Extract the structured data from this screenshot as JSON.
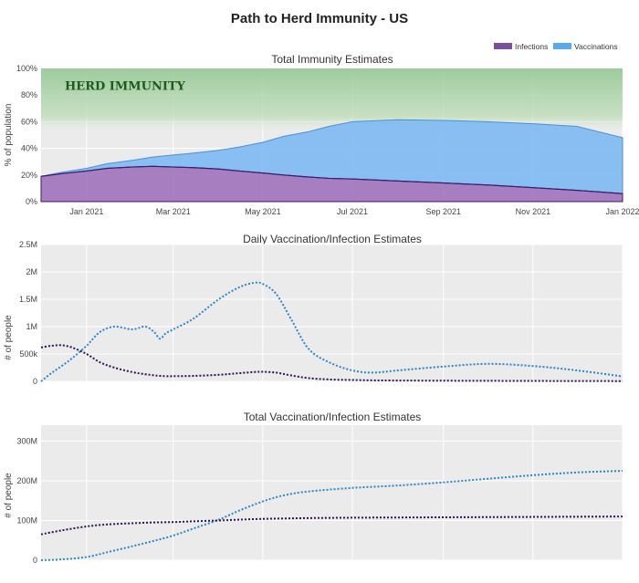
{
  "figure": {
    "title": "Path to Herd Immunity - US",
    "legend": {
      "position": "top-right",
      "items": [
        {
          "name": "Infections",
          "color": "#7a4f9e"
        },
        {
          "name": "Vaccinations",
          "color": "#5aa9ee"
        }
      ]
    },
    "x_ticks": [
      "Jan 2021",
      "Mar 2021",
      "May 2021",
      "Jul 2021",
      "Sep 2021",
      "Nov 2021",
      "Jan 2022"
    ]
  },
  "chart_data": [
    {
      "type": "area",
      "title": "Total Immunity Estimates",
      "ylabel": "% of population",
      "ylim": [
        0,
        100
      ],
      "yticks": [
        "0%",
        "20%",
        "40%",
        "60%",
        "80%",
        "100%"
      ],
      "annotation": "HERD IMMUNITY",
      "herd_band": [
        60,
        100
      ],
      "x": [
        "2020-12-01",
        "2020-12-15",
        "2021-01-01",
        "2021-01-15",
        "2021-02-01",
        "2021-02-15",
        "2021-03-01",
        "2021-03-15",
        "2021-04-01",
        "2021-04-15",
        "2021-05-01",
        "2021-05-15",
        "2021-06-01",
        "2021-06-15",
        "2021-07-01",
        "2021-08-01",
        "2021-09-01",
        "2021-10-01",
        "2021-11-01",
        "2021-12-01",
        "2022-01-01"
      ],
      "series": [
        {
          "name": "Infections",
          "color": "#7a4f9e",
          "values": [
            19,
            21,
            23,
            25,
            26,
            26.5,
            26,
            25.5,
            24.5,
            23,
            21.5,
            20,
            18.5,
            17.5,
            17,
            15.5,
            14,
            12.5,
            10.5,
            8.5,
            6
          ]
        },
        {
          "name": "Vaccinations",
          "color": "#5aa9ee",
          "values": [
            0,
            1,
            2,
            3.5,
            5,
            7,
            9,
            11,
            14,
            18,
            23,
            29,
            34,
            39,
            43,
            46,
            47,
            47.5,
            48,
            48,
            42
          ]
        }
      ]
    },
    {
      "type": "line",
      "title": "Daily Vaccination/Infection Estimates",
      "ylabel": "# of people",
      "ylim": [
        0,
        2500000
      ],
      "yticks": [
        "0",
        "500k",
        "1M",
        "1.5M",
        "2M",
        "2.5M"
      ],
      "x": [
        "2020-12-01",
        "2020-12-08",
        "2020-12-15",
        "2020-12-22",
        "2021-01-01",
        "2021-01-10",
        "2021-01-20",
        "2021-02-01",
        "2021-02-10",
        "2021-02-16",
        "2021-02-20",
        "2021-02-24",
        "2021-03-01",
        "2021-03-15",
        "2021-04-01",
        "2021-04-15",
        "2021-04-25",
        "2021-05-01",
        "2021-05-10",
        "2021-05-20",
        "2021-06-01",
        "2021-06-15",
        "2021-07-01",
        "2021-07-15",
        "2021-08-01",
        "2021-09-01",
        "2021-10-01",
        "2021-11-01",
        "2021-12-01",
        "2022-01-01"
      ],
      "series": [
        {
          "name": "Vaccinations",
          "color": "#2b86c9",
          "values": [
            0,
            150000,
            280000,
            420000,
            650000,
            900000,
            1000000,
            950000,
            1000000,
            900000,
            780000,
            880000,
            950000,
            1150000,
            1500000,
            1720000,
            1800000,
            1780000,
            1600000,
            1150000,
            600000,
            350000,
            200000,
            160000,
            200000,
            270000,
            320000,
            280000,
            200000,
            90000
          ]
        },
        {
          "name": "Infections",
          "color": "#2a1352",
          "values": [
            620000,
            650000,
            660000,
            620000,
            500000,
            350000,
            250000,
            170000,
            130000,
            110000,
            100000,
            95000,
            95000,
            100000,
            120000,
            150000,
            170000,
            175000,
            160000,
            110000,
            60000,
            35000,
            25000,
            18000,
            15000,
            12000,
            10000,
            8000,
            6000,
            5000
          ]
        }
      ]
    },
    {
      "type": "line",
      "title": "Total Vaccination/Infection Estimates",
      "ylabel": "# of people",
      "ylim": [
        0,
        340000000
      ],
      "yticks": [
        "0",
        "100M",
        "200M",
        "300M"
      ],
      "x": [
        "2020-12-01",
        "2020-12-15",
        "2021-01-01",
        "2021-01-15",
        "2021-02-01",
        "2021-02-15",
        "2021-03-01",
        "2021-03-15",
        "2021-04-01",
        "2021-04-15",
        "2021-05-01",
        "2021-05-15",
        "2021-06-01",
        "2021-07-01",
        "2021-08-01",
        "2021-09-01",
        "2021-10-01",
        "2021-11-01",
        "2021-12-01",
        "2022-01-01"
      ],
      "series": [
        {
          "name": "Vaccinations",
          "color": "#2b86c9",
          "values": [
            0,
            2000000,
            8000000,
            20000000,
            35000000,
            48000000,
            62000000,
            80000000,
            102000000,
            125000000,
            148000000,
            163000000,
            173000000,
            182000000,
            188000000,
            196000000,
            205000000,
            214000000,
            221000000,
            225000000
          ]
        },
        {
          "name": "Infections",
          "color": "#2a1352",
          "values": [
            65000000,
            75000000,
            85000000,
            90000000,
            93000000,
            95000000,
            96000000,
            98000000,
            100000000,
            102000000,
            104000000,
            105000000,
            106000000,
            107000000,
            107500000,
            108000000,
            108500000,
            109000000,
            109500000,
            110000000
          ]
        }
      ]
    }
  ]
}
